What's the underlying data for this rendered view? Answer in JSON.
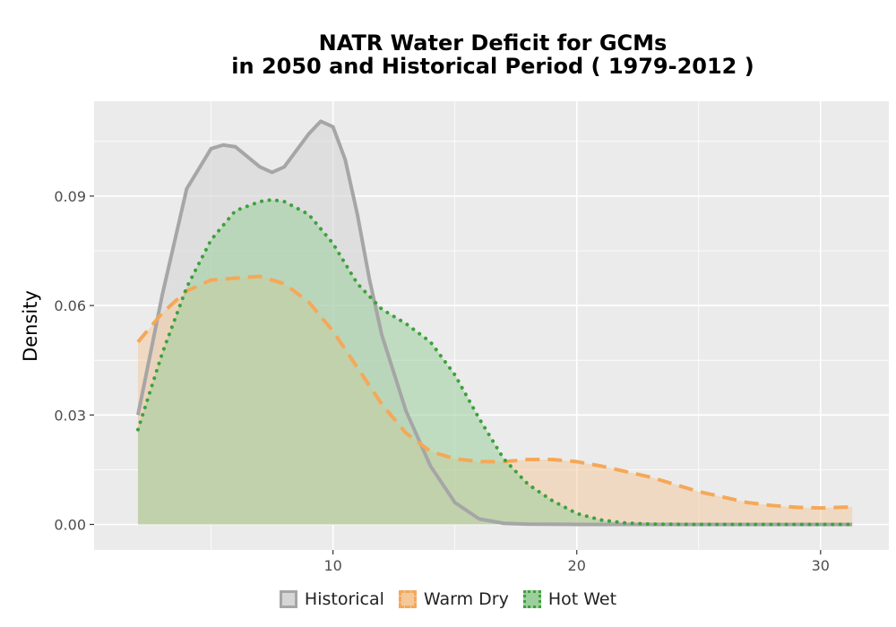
{
  "chart_data": {
    "type": "area",
    "title_line1": "NATR  Water Deficit for GCMs",
    "title_line2": "in 2050 and Historical Period ( 1979-2012 )",
    "xlabel": "",
    "ylabel": "Density",
    "xlim": [
      0.2,
      32.8
    ],
    "ylim": [
      -0.007,
      0.116
    ],
    "x_ticks": [
      10,
      20,
      30
    ],
    "x_tick_labels": [
      "10",
      "20",
      "30"
    ],
    "y_ticks": [
      0.0,
      0.03,
      0.06,
      0.09
    ],
    "y_tick_labels": [
      "0.00",
      "0.03",
      "0.06",
      "0.09"
    ],
    "grid": true,
    "legend_position": "bottom",
    "series": [
      {
        "name": "Historical",
        "line_style": "solid",
        "line_color": "#a6a6a6",
        "fill_color": "#d6d6d6",
        "fill_opacity": 0.6,
        "x": [
          2.0,
          3.0,
          4.0,
          5.0,
          5.5,
          6.0,
          7.0,
          7.5,
          8.0,
          9.0,
          9.5,
          10.0,
          10.5,
          11.0,
          11.5,
          12.0,
          13.0,
          14.0,
          15.0,
          16.0,
          17.0,
          18.0,
          20.0,
          25.0,
          31.3
        ],
        "y": [
          0.03,
          0.063,
          0.092,
          0.103,
          0.104,
          0.1035,
          0.098,
          0.0965,
          0.098,
          0.107,
          0.1105,
          0.109,
          0.1,
          0.085,
          0.067,
          0.052,
          0.031,
          0.016,
          0.006,
          0.0015,
          0.0003,
          0.0001,
          0.0,
          0.0,
          0.0
        ]
      },
      {
        "name": "Warm Dry",
        "line_style": "dashed",
        "line_color": "#f5a857",
        "fill_color": "#f5c89a",
        "fill_opacity": 0.5,
        "x": [
          2.0,
          3.0,
          4.0,
          5.0,
          6.0,
          7.0,
          8.0,
          9.0,
          10.0,
          11.0,
          12.0,
          13.0,
          14.0,
          15.0,
          16.0,
          17.0,
          18.0,
          19.0,
          20.0,
          21.0,
          22.0,
          23.0,
          24.0,
          25.0,
          26.0,
          27.0,
          28.0,
          29.0,
          30.0,
          31.3
        ],
        "y": [
          0.05,
          0.058,
          0.064,
          0.067,
          0.0675,
          0.068,
          0.066,
          0.061,
          0.053,
          0.043,
          0.033,
          0.025,
          0.02,
          0.018,
          0.0172,
          0.0172,
          0.0178,
          0.0178,
          0.0172,
          0.016,
          0.0145,
          0.013,
          0.011,
          0.009,
          0.0075,
          0.006,
          0.0052,
          0.0047,
          0.0045,
          0.0048
        ]
      },
      {
        "name": "Hot Wet",
        "line_style": "dotted",
        "line_color": "#3da13d",
        "fill_color": "#9ccf9c",
        "fill_opacity": 0.55,
        "x": [
          2.0,
          3.0,
          4.0,
          5.0,
          6.0,
          7.0,
          7.5,
          8.0,
          9.0,
          10.0,
          11.0,
          12.0,
          13.0,
          14.0,
          15.0,
          16.0,
          17.0,
          18.0,
          19.0,
          20.0,
          21.0,
          22.0,
          23.0,
          25.0,
          28.0,
          31.3
        ],
        "y": [
          0.026,
          0.047,
          0.065,
          0.078,
          0.086,
          0.0885,
          0.089,
          0.0885,
          0.085,
          0.077,
          0.066,
          0.059,
          0.055,
          0.05,
          0.041,
          0.029,
          0.018,
          0.011,
          0.0065,
          0.003,
          0.0012,
          0.0004,
          0.0001,
          0.0,
          0.0,
          0.0
        ]
      }
    ]
  }
}
